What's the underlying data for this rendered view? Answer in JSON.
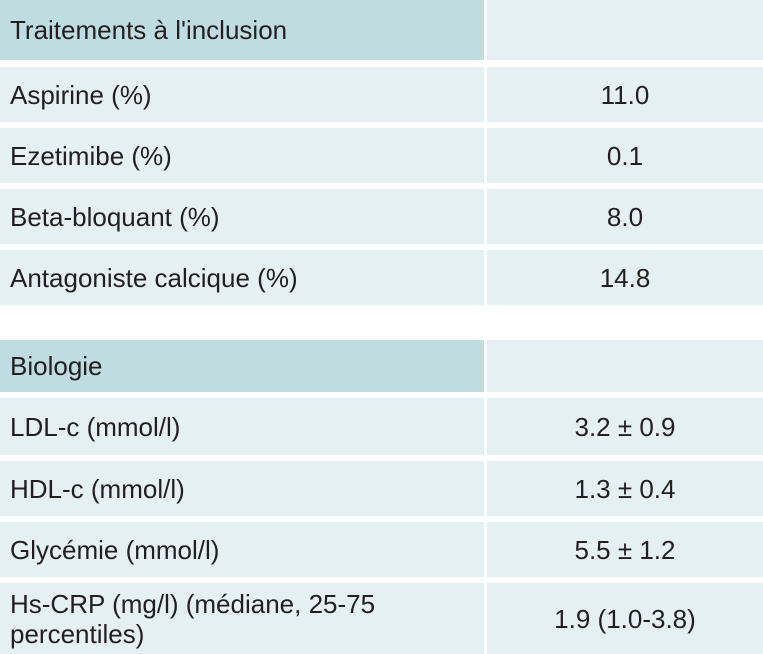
{
  "sections": [
    {
      "header": "Traitements à l'inclusion",
      "rows": [
        {
          "label": "Aspirine (%)",
          "value": "11.0"
        },
        {
          "label": "Ezetimibe (%)",
          "value": "0.1"
        },
        {
          "label": "Beta-bloquant (%)",
          "value": "8.0"
        },
        {
          "label": "Antagoniste calcique (%)",
          "value": "14.8"
        }
      ]
    },
    {
      "header": "Biologie",
      "rows": [
        {
          "label": "LDL-c (mmol/l)",
          "value": "3.2 ± 0.9"
        },
        {
          "label": "HDL-c (mmol/l)",
          "value": "1.3 ± 0.4"
        },
        {
          "label": "Glycémie (mmol/l)",
          "value": "5.5 ± 1.2"
        },
        {
          "label": "Hs-CRP (mg/l) (médiane, 25-75 percentiles)",
          "label_line1": "Hs-CRP (mg/l) (médiane, 25-75",
          "label_line2": "percentiles)",
          "value": "1.9 (1.0-3.8)"
        }
      ]
    }
  ]
}
